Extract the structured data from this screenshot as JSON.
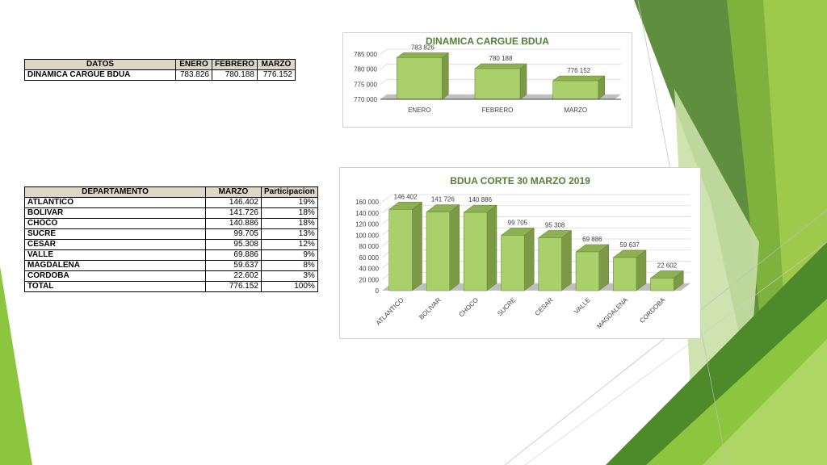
{
  "colors": {
    "accent_green": "#8cc63f",
    "dark_green": "#538135",
    "bar_front": "#a9d06b",
    "bar_side": "#7a9a45",
    "header_fill": "#ded7c6"
  },
  "table1": {
    "headers": [
      "DATOS",
      "ENERO",
      "FEBRERO",
      "MARZO"
    ],
    "row": {
      "label": "DINAMICA CARGUE BDUA",
      "values": [
        "783.826",
        "780.188",
        "776.152"
      ]
    }
  },
  "table2": {
    "headers": [
      "DEPARTAMENTO",
      "MARZO",
      "Participacion"
    ],
    "rows": [
      {
        "label": "ATLANTICO",
        "marzo": "146.402",
        "pct": "19%"
      },
      {
        "label": "BOLIVAR",
        "marzo": "141.726",
        "pct": "18%"
      },
      {
        "label": "CHOCO",
        "marzo": "140.886",
        "pct": "18%"
      },
      {
        "label": "SUCRE",
        "marzo": "99.705",
        "pct": "13%"
      },
      {
        "label": "CESAR",
        "marzo": "95.308",
        "pct": "12%"
      },
      {
        "label": "VALLE",
        "marzo": "69.886",
        "pct": "9%"
      },
      {
        "label": "MAGDALENA",
        "marzo": "59.637",
        "pct": "8%"
      },
      {
        "label": "CORDOBA",
        "marzo": "22.602",
        "pct": "3%"
      },
      {
        "label": "TOTAL",
        "marzo": "776.152",
        "pct": "100%"
      }
    ]
  },
  "chart_data": [
    {
      "type": "bar",
      "title": "DINAMICA CARGUE BDUA",
      "categories": [
        "ENERO",
        "FEBRERO",
        "MARZO"
      ],
      "values": [
        783826,
        780188,
        776152
      ],
      "value_labels": [
        "783 826",
        "780 188",
        "776 152"
      ],
      "ylim": [
        770000,
        785000
      ],
      "yticks": [
        770000,
        775000,
        780000,
        785000
      ],
      "ytick_labels": [
        "770 000",
        "775 000",
        "780 000",
        "785 000"
      ],
      "grid": true,
      "style": "3d"
    },
    {
      "type": "bar",
      "title": "BDUA CORTE 30 MARZO 2019",
      "categories": [
        "ATLANTICO",
        "BOLIVAR",
        "CHOCO",
        "SUCRE",
        "CESAR",
        "VALLE",
        "MAGDALENA",
        "CORDOBA"
      ],
      "values": [
        146402,
        141726,
        140886,
        99705,
        95308,
        69886,
        59637,
        22602
      ],
      "value_labels": [
        "146 402",
        "141 726",
        "140 886",
        "99 705",
        "95 308",
        "69 886",
        "59 637",
        "22 602"
      ],
      "ylim": [
        0,
        160000
      ],
      "yticks": [
        0,
        20000,
        40000,
        60000,
        80000,
        100000,
        120000,
        140000,
        160000
      ],
      "ytick_labels": [
        "0",
        "20 000",
        "40 000",
        "60 000",
        "80 000",
        "100 000",
        "120 000",
        "140 000",
        "160 000"
      ],
      "grid": true,
      "style": "3d"
    }
  ]
}
